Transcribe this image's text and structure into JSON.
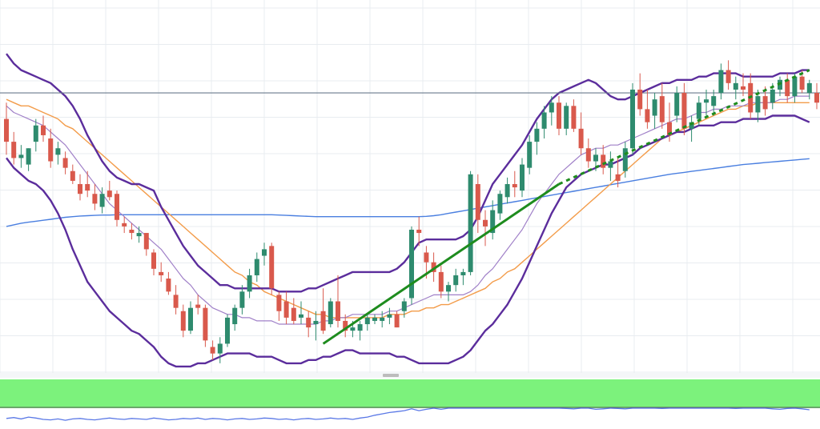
{
  "colors": {
    "background": "#ffffff",
    "grid": "#e8ecf0",
    "candle_up": "#2e8b6e",
    "candle_down": "#d9594c",
    "bollinger": "#5b2d9c",
    "bollinger_mid": "#a080c8",
    "sma_orange": "#f39c4a",
    "sma_blue": "#4a7fe0",
    "horizontal_level": "#6a7a8c",
    "trendline": "#1e8c1e",
    "rsi_band": "#7cf27c",
    "rsi_line": "#5a78e6",
    "separator_handle": "#bcbcbc"
  },
  "chart_data": {
    "type": "candlestick",
    "title": "",
    "xlabel": "",
    "ylabel": "",
    "grid": true,
    "ylim": [
      0,
      100
    ],
    "candles": [
      {
        "o": 77,
        "h": 82,
        "l": 66,
        "c": 70
      },
      {
        "o": 70,
        "h": 73,
        "l": 63,
        "c": 65
      },
      {
        "o": 65,
        "h": 69,
        "l": 62,
        "c": 66
      },
      {
        "o": 63,
        "h": 68,
        "l": 61,
        "c": 68
      },
      {
        "o": 70,
        "h": 77,
        "l": 67,
        "c": 75
      },
      {
        "o": 75,
        "h": 78,
        "l": 70,
        "c": 72
      },
      {
        "o": 71,
        "h": 74,
        "l": 62,
        "c": 64
      },
      {
        "o": 66,
        "h": 70,
        "l": 63,
        "c": 68
      },
      {
        "o": 65,
        "h": 67,
        "l": 60,
        "c": 62
      },
      {
        "o": 61,
        "h": 63,
        "l": 57,
        "c": 58
      },
      {
        "o": 57,
        "h": 60,
        "l": 52,
        "c": 54
      },
      {
        "o": 57,
        "h": 61,
        "l": 53,
        "c": 55
      },
      {
        "o": 54,
        "h": 57,
        "l": 49,
        "c": 51
      },
      {
        "o": 50,
        "h": 56,
        "l": 48,
        "c": 54
      },
      {
        "o": 55,
        "h": 58,
        "l": 52,
        "c": 53
      },
      {
        "o": 54,
        "h": 55,
        "l": 44,
        "c": 46
      },
      {
        "o": 45,
        "h": 47,
        "l": 42,
        "c": 44
      },
      {
        "o": 43,
        "h": 45,
        "l": 40,
        "c": 42
      },
      {
        "o": 41,
        "h": 44,
        "l": 39,
        "c": 42
      },
      {
        "o": 42,
        "h": 42,
        "l": 35,
        "c": 37
      },
      {
        "o": 36,
        "h": 37,
        "l": 29,
        "c": 31
      },
      {
        "o": 30,
        "h": 33,
        "l": 27,
        "c": 29
      },
      {
        "o": 28,
        "h": 30,
        "l": 23,
        "c": 24
      },
      {
        "o": 23,
        "h": 26,
        "l": 17,
        "c": 19
      },
      {
        "o": 18,
        "h": 20,
        "l": 10,
        "c": 12
      },
      {
        "o": 12,
        "h": 21,
        "l": 11,
        "c": 19
      },
      {
        "o": 20,
        "h": 23,
        "l": 17,
        "c": 19
      },
      {
        "o": 19,
        "h": 20,
        "l": 7,
        "c": 9
      },
      {
        "o": 7,
        "h": 9,
        "l": 3,
        "c": 5
      },
      {
        "o": 5,
        "h": 10,
        "l": 2,
        "c": 8
      },
      {
        "o": 8,
        "h": 17,
        "l": 7,
        "c": 16
      },
      {
        "o": 14,
        "h": 20,
        "l": 12,
        "c": 19
      },
      {
        "o": 19,
        "h": 26,
        "l": 17,
        "c": 24
      },
      {
        "o": 24,
        "h": 31,
        "l": 22,
        "c": 29
      },
      {
        "o": 29,
        "h": 36,
        "l": 27,
        "c": 34
      },
      {
        "o": 35,
        "h": 39,
        "l": 32,
        "c": 37
      },
      {
        "o": 38,
        "h": 39,
        "l": 23,
        "c": 25
      },
      {
        "o": 23,
        "h": 24,
        "l": 15,
        "c": 18
      },
      {
        "o": 21,
        "h": 24,
        "l": 14,
        "c": 16
      },
      {
        "o": 19,
        "h": 22,
        "l": 14,
        "c": 15
      },
      {
        "o": 16,
        "h": 21,
        "l": 14,
        "c": 17
      },
      {
        "o": 16,
        "h": 18,
        "l": 10,
        "c": 13
      },
      {
        "o": 14,
        "h": 18,
        "l": 9,
        "c": 15
      },
      {
        "o": 18,
        "h": 25,
        "l": 11,
        "c": 12
      },
      {
        "o": 14,
        "h": 22,
        "l": 13,
        "c": 21
      },
      {
        "o": 21,
        "h": 29,
        "l": 13,
        "c": 15
      },
      {
        "o": 15,
        "h": 17,
        "l": 10,
        "c": 12
      },
      {
        "o": 12,
        "h": 15,
        "l": 10,
        "c": 13
      },
      {
        "o": 12,
        "h": 15,
        "l": 9,
        "c": 14
      },
      {
        "o": 14,
        "h": 17,
        "l": 12,
        "c": 16
      },
      {
        "o": 15,
        "h": 17,
        "l": 14,
        "c": 16
      },
      {
        "o": 15,
        "h": 18,
        "l": 13,
        "c": 16
      },
      {
        "o": 16,
        "h": 19,
        "l": 14,
        "c": 17
      },
      {
        "o": 17,
        "h": 18,
        "l": 13,
        "c": 13
      },
      {
        "o": 18,
        "h": 22,
        "l": 16,
        "c": 21
      },
      {
        "o": 22,
        "h": 44,
        "l": 20,
        "c": 43
      },
      {
        "o": 43,
        "h": 47,
        "l": 38,
        "c": 42
      },
      {
        "o": 36,
        "h": 38,
        "l": 28,
        "c": 33
      },
      {
        "o": 33,
        "h": 36,
        "l": 27,
        "c": 30
      },
      {
        "o": 30,
        "h": 32,
        "l": 22,
        "c": 24
      },
      {
        "o": 24,
        "h": 27,
        "l": 21,
        "c": 26
      },
      {
        "o": 26,
        "h": 31,
        "l": 24,
        "c": 29
      },
      {
        "o": 29,
        "h": 31,
        "l": 26,
        "c": 30
      },
      {
        "o": 30,
        "h": 61,
        "l": 29,
        "c": 60
      },
      {
        "o": 57,
        "h": 60,
        "l": 42,
        "c": 46
      },
      {
        "o": 46,
        "h": 49,
        "l": 38,
        "c": 44
      },
      {
        "o": 42,
        "h": 52,
        "l": 40,
        "c": 49
      },
      {
        "o": 48,
        "h": 55,
        "l": 46,
        "c": 54
      },
      {
        "o": 53,
        "h": 59,
        "l": 51,
        "c": 57
      },
      {
        "o": 57,
        "h": 61,
        "l": 53,
        "c": 56
      },
      {
        "o": 55,
        "h": 65,
        "l": 53,
        "c": 63
      },
      {
        "o": 62,
        "h": 72,
        "l": 60,
        "c": 70
      },
      {
        "o": 70,
        "h": 76,
        "l": 66,
        "c": 74
      },
      {
        "o": 74,
        "h": 81,
        "l": 71,
        "c": 79
      },
      {
        "o": 79,
        "h": 84,
        "l": 75,
        "c": 82
      },
      {
        "o": 82,
        "h": 84,
        "l": 72,
        "c": 74
      },
      {
        "o": 74,
        "h": 82,
        "l": 72,
        "c": 81
      },
      {
        "o": 81,
        "h": 83,
        "l": 73,
        "c": 74
      },
      {
        "o": 74,
        "h": 79,
        "l": 66,
        "c": 68
      },
      {
        "o": 68,
        "h": 71,
        "l": 62,
        "c": 64
      },
      {
        "o": 64,
        "h": 68,
        "l": 61,
        "c": 66
      },
      {
        "o": 66,
        "h": 69,
        "l": 60,
        "c": 62
      },
      {
        "o": 62,
        "h": 67,
        "l": 58,
        "c": 64
      },
      {
        "o": 60,
        "h": 65,
        "l": 56,
        "c": 58
      },
      {
        "o": 61,
        "h": 70,
        "l": 59,
        "c": 68
      },
      {
        "o": 68,
        "h": 88,
        "l": 66,
        "c": 86
      },
      {
        "o": 86,
        "h": 91,
        "l": 78,
        "c": 80
      },
      {
        "o": 80,
        "h": 86,
        "l": 74,
        "c": 76
      },
      {
        "o": 78,
        "h": 85,
        "l": 74,
        "c": 83
      },
      {
        "o": 84,
        "h": 88,
        "l": 74,
        "c": 76
      },
      {
        "o": 76,
        "h": 82,
        "l": 70,
        "c": 72
      },
      {
        "o": 78,
        "h": 87,
        "l": 76,
        "c": 85
      },
      {
        "o": 85,
        "h": 88,
        "l": 72,
        "c": 74
      },
      {
        "o": 74,
        "h": 78,
        "l": 70,
        "c": 76
      },
      {
        "o": 77,
        "h": 84,
        "l": 75,
        "c": 82
      },
      {
        "o": 82,
        "h": 86,
        "l": 78,
        "c": 83
      },
      {
        "o": 81,
        "h": 86,
        "l": 78,
        "c": 84
      },
      {
        "o": 85,
        "h": 94,
        "l": 83,
        "c": 92
      },
      {
        "o": 92,
        "h": 95,
        "l": 86,
        "c": 88
      },
      {
        "o": 86,
        "h": 90,
        "l": 83,
        "c": 88
      },
      {
        "o": 87,
        "h": 91,
        "l": 84,
        "c": 86
      },
      {
        "o": 88,
        "h": 91,
        "l": 77,
        "c": 79
      },
      {
        "o": 79,
        "h": 86,
        "l": 76,
        "c": 84
      },
      {
        "o": 84,
        "h": 87,
        "l": 78,
        "c": 80
      },
      {
        "o": 82,
        "h": 88,
        "l": 80,
        "c": 86
      },
      {
        "o": 86,
        "h": 90,
        "l": 84,
        "c": 89
      },
      {
        "o": 89,
        "h": 91,
        "l": 82,
        "c": 84
      },
      {
        "o": 84,
        "h": 91,
        "l": 82,
        "c": 90
      },
      {
        "o": 90,
        "h": 92,
        "l": 85,
        "c": 86
      },
      {
        "o": 85,
        "h": 89,
        "l": 83,
        "c": 88
      },
      {
        "o": 85,
        "h": 88,
        "l": 80,
        "c": 82
      },
      {
        "o": 86,
        "h": 90,
        "l": 72,
        "c": 74
      }
    ],
    "bollinger_upper": [
      97,
      94,
      92,
      91,
      90,
      89,
      88,
      86,
      84,
      81,
      77,
      72,
      68,
      64,
      61,
      59,
      58,
      57,
      57,
      56,
      55,
      50,
      46,
      42,
      38,
      35,
      32,
      30,
      28,
      26,
      26,
      25,
      25,
      25,
      25,
      25,
      25,
      24,
      24,
      24,
      24,
      25,
      25,
      26,
      27,
      28,
      29,
      30,
      30,
      30,
      30,
      30,
      30,
      31,
      33,
      36,
      39,
      40,
      40,
      40,
      40,
      40,
      41,
      43,
      47,
      52,
      57,
      60,
      63,
      66,
      69,
      73,
      77,
      80,
      83,
      85,
      86,
      87,
      88,
      89,
      88,
      86,
      84,
      83,
      83,
      84,
      85,
      86,
      87,
      88,
      88,
      89,
      89,
      89,
      90,
      90,
      91,
      91,
      91,
      91,
      90,
      90,
      90,
      90,
      90,
      91,
      91,
      91,
      92,
      92
    ],
    "bollinger_lower": [
      65,
      62,
      60,
      58,
      57,
      55,
      52,
      48,
      43,
      37,
      32,
      27,
      24,
      21,
      18,
      16,
      14,
      12,
      11,
      9,
      7,
      4,
      2,
      1,
      1,
      1,
      2,
      2,
      3,
      4,
      5,
      5,
      5,
      5,
      4,
      4,
      4,
      3,
      2,
      2,
      2,
      3,
      3,
      4,
      4,
      5,
      6,
      6,
      5,
      5,
      5,
      5,
      5,
      4,
      4,
      3,
      2,
      2,
      2,
      2,
      2,
      3,
      4,
      6,
      9,
      12,
      14,
      17,
      20,
      24,
      28,
      33,
      38,
      43,
      48,
      52,
      56,
      58,
      60,
      61,
      62,
      63,
      63,
      64,
      65,
      66,
      68,
      69,
      70,
      71,
      72,
      73,
      73,
      74,
      75,
      75,
      75,
      76,
      76,
      76,
      77,
      77,
      77,
      77,
      78,
      78,
      78,
      78,
      77,
      76
    ],
    "bollinger_middle": [
      81,
      79,
      78,
      77,
      76,
      75,
      73,
      71,
      69,
      66,
      63,
      60,
      57,
      54,
      51,
      49,
      47,
      45,
      43,
      41,
      39,
      37,
      34,
      31,
      28,
      26,
      23,
      21,
      19,
      18,
      17,
      17,
      16,
      16,
      15,
      15,
      15,
      14,
      14,
      14,
      14,
      14,
      14,
      15,
      15,
      16,
      16,
      17,
      17,
      17,
      17,
      17,
      18,
      18,
      19,
      20,
      21,
      22,
      23,
      23,
      23,
      23,
      23,
      24,
      26,
      29,
      31,
      34,
      37,
      40,
      43,
      47,
      51,
      54,
      57,
      60,
      62,
      64,
      66,
      67,
      68,
      68,
      69,
      69,
      70,
      71,
      72,
      73,
      74,
      75,
      76,
      77,
      77,
      78,
      79,
      79,
      80,
      80,
      81,
      81,
      81,
      82,
      82,
      82,
      82,
      83,
      83,
      84,
      84,
      84
    ],
    "sma_orange": [
      83,
      82,
      81,
      81,
      80,
      79,
      78,
      77,
      75,
      74,
      72,
      70,
      68,
      66,
      64,
      62,
      60,
      58,
      56,
      54,
      52,
      50,
      48,
      46,
      44,
      42,
      40,
      38,
      36,
      34,
      32,
      30,
      29,
      27,
      26,
      24,
      23,
      22,
      21,
      20,
      19,
      18,
      17,
      17,
      16,
      16,
      16,
      16,
      16,
      16,
      16,
      16,
      17,
      17,
      17,
      18,
      18,
      19,
      19,
      20,
      20,
      21,
      22,
      23,
      24,
      25,
      27,
      28,
      30,
      31,
      33,
      35,
      37,
      39,
      41,
      43,
      45,
      47,
      49,
      51,
      53,
      55,
      57,
      59,
      61,
      63,
      65,
      67,
      69,
      71,
      72,
      73,
      74,
      75,
      76,
      77,
      78,
      79,
      80,
      80,
      81,
      81,
      82,
      82,
      82,
      82,
      82,
      82,
      82,
      82
    ],
    "sma_blue": [
      44,
      44.5,
      45,
      45.3,
      45.6,
      45.9,
      46.2,
      46.5,
      46.8,
      47,
      47.2,
      47.3,
      47.4,
      47.5,
      47.5,
      47.6,
      47.6,
      47.6,
      47.6,
      47.6,
      47.6,
      47.6,
      47.6,
      47.6,
      47.6,
      47.6,
      47.6,
      47.6,
      47.6,
      47.6,
      47.6,
      47.6,
      47.6,
      47.6,
      47.6,
      47.6,
      47.6,
      47.5,
      47.4,
      47.3,
      47.2,
      47.1,
      47,
      47,
      47,
      47,
      47,
      47,
      47,
      47,
      47,
      47,
      47,
      47,
      47,
      47,
      47,
      47.1,
      47.3,
      47.6,
      48,
      48.4,
      48.8,
      49.2,
      49.6,
      50,
      50.4,
      50.8,
      51.2,
      51.6,
      52,
      52.4,
      52.8,
      53.2,
      53.6,
      54,
      54.4,
      54.8,
      55.2,
      55.6,
      56,
      56.4,
      56.8,
      57.2,
      57.6,
      58,
      58.4,
      58.8,
      59.2,
      59.6,
      60,
      60.3,
      60.6,
      60.9,
      61.2,
      61.5,
      61.8,
      62.1,
      62.4,
      62.7,
      63,
      63.2,
      63.4,
      63.6,
      63.8,
      64,
      64.2,
      64.4,
      64.6,
      64.8
    ],
    "horizontal_level": 85,
    "trendline": {
      "from": [
        43,
        8
      ],
      "to": [
        75,
        57
      ]
    },
    "trendline_projection": {
      "from": [
        75,
        57
      ],
      "to": [
        109,
        92
      ]
    },
    "rsi": [
      23,
      25,
      22,
      26,
      24,
      21,
      20,
      22,
      19,
      22,
      23,
      21,
      20,
      22,
      24,
      22,
      21,
      23,
      22,
      21,
      24,
      22,
      20,
      21,
      23,
      22,
      24,
      21,
      23,
      22,
      20,
      22,
      23,
      21,
      22,
      24,
      23,
      21,
      22,
      20,
      22,
      23,
      21,
      22,
      24,
      22,
      23,
      21,
      24,
      26,
      30,
      33,
      36,
      38,
      40,
      44,
      40,
      43,
      46,
      43,
      50,
      46,
      48,
      50,
      47,
      50,
      48,
      52,
      50,
      53,
      50,
      52,
      49,
      50,
      48,
      47,
      45,
      44,
      46,
      48,
      43,
      44,
      46,
      45,
      44,
      47,
      48,
      49,
      47,
      45,
      46,
      48,
      47,
      50,
      46,
      48,
      49,
      47,
      46,
      45,
      47,
      49,
      47,
      46,
      44,
      43,
      45,
      46,
      44,
      42
    ]
  }
}
